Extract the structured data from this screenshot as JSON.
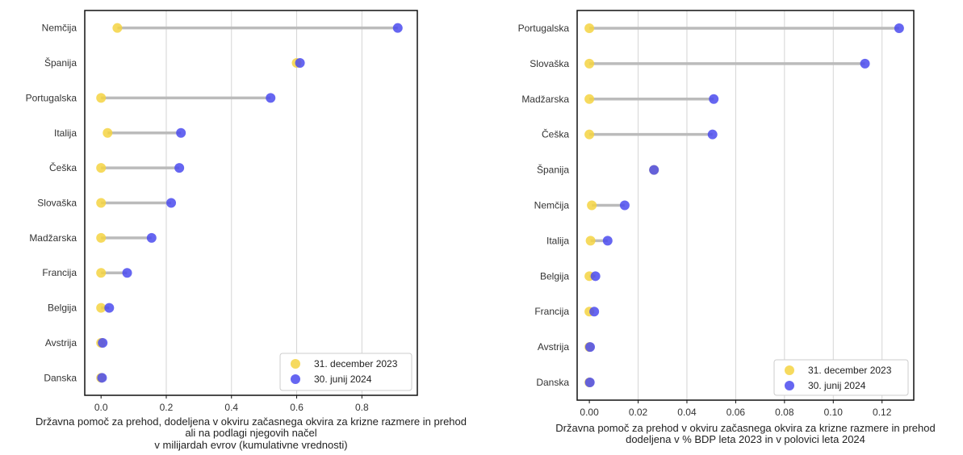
{
  "colors": {
    "start": "#F5D442",
    "end": "#4B4BEE",
    "line": "#BBBBBB",
    "grid": "#D4D4D4",
    "frame": "#111111"
  },
  "chart_data": [
    {
      "type": "dumbbell",
      "orientation": "horizontal",
      "categories": [
        "Nemčija",
        "Španija",
        "Portugalska",
        "Italija",
        "Češka",
        "Slovaška",
        "Madžarska",
        "Francija",
        "Belgija",
        "Avstrija",
        "Danska"
      ],
      "series": [
        {
          "name": "31. december 2023",
          "color": "#F5D442",
          "values": [
            0.05,
            0.6,
            0.0,
            0.02,
            0.0,
            0.0,
            0.0,
            0.0,
            0.0,
            0.0,
            0.0
          ]
        },
        {
          "name": "30. junij 2024",
          "color": "#4B4BEE",
          "values": [
            0.91,
            0.61,
            0.52,
            0.245,
            0.24,
            0.215,
            0.155,
            0.08,
            0.025,
            0.005,
            0.003
          ]
        }
      ],
      "xlim": [
        -0.05,
        0.97
      ],
      "xticks": [
        0.0,
        0.2,
        0.4,
        0.6,
        0.8
      ],
      "xtick_labels": [
        "0.0",
        "0.2",
        "0.4",
        "0.6",
        "0.8"
      ],
      "xlabel_lines": [
        "Državna pomoč za prehod, dodeljena v okviru začasnega okvira za krizne razmere in prehod",
        "ali na podlagi njegovih načel",
        "v milijardah evrov (kumulativne vrednosti)"
      ],
      "grid": "vertical",
      "legend": "bottom-right"
    },
    {
      "type": "dumbbell",
      "orientation": "horizontal",
      "categories": [
        "Portugalska",
        "Slovaška",
        "Madžarska",
        "Češka",
        "Španija",
        "Nemčija",
        "Italija",
        "Belgija",
        "Francija",
        "Avstrija",
        "Danska"
      ],
      "series": [
        {
          "name": "31. december 2023",
          "color": "#F5D442",
          "values": [
            0.0,
            0.0,
            0.0,
            0.0,
            0.0265,
            0.001,
            0.0005,
            0.0,
            0.0,
            0.0,
            0.0
          ]
        },
        {
          "name": "30. junij 2024",
          "color": "#4B4BEE",
          "values": [
            0.127,
            0.113,
            0.051,
            0.0505,
            0.0265,
            0.0145,
            0.0075,
            0.0025,
            0.002,
            0.0003,
            0.0002
          ]
        }
      ],
      "xlim": [
        -0.005,
        0.133
      ],
      "xticks": [
        0.0,
        0.02,
        0.04,
        0.06,
        0.08,
        0.1,
        0.12
      ],
      "xtick_labels": [
        "0.00",
        "0.02",
        "0.04",
        "0.06",
        "0.08",
        "0.10",
        "0.12"
      ],
      "xlabel_lines": [
        "Državna pomoč za prehod v okviru začasnega okvira za krizne razmere in prehod",
        "dodeljena v % BDP leta 2023 in v polovici leta 2024"
      ],
      "grid": "vertical",
      "legend": "bottom-right"
    }
  ]
}
